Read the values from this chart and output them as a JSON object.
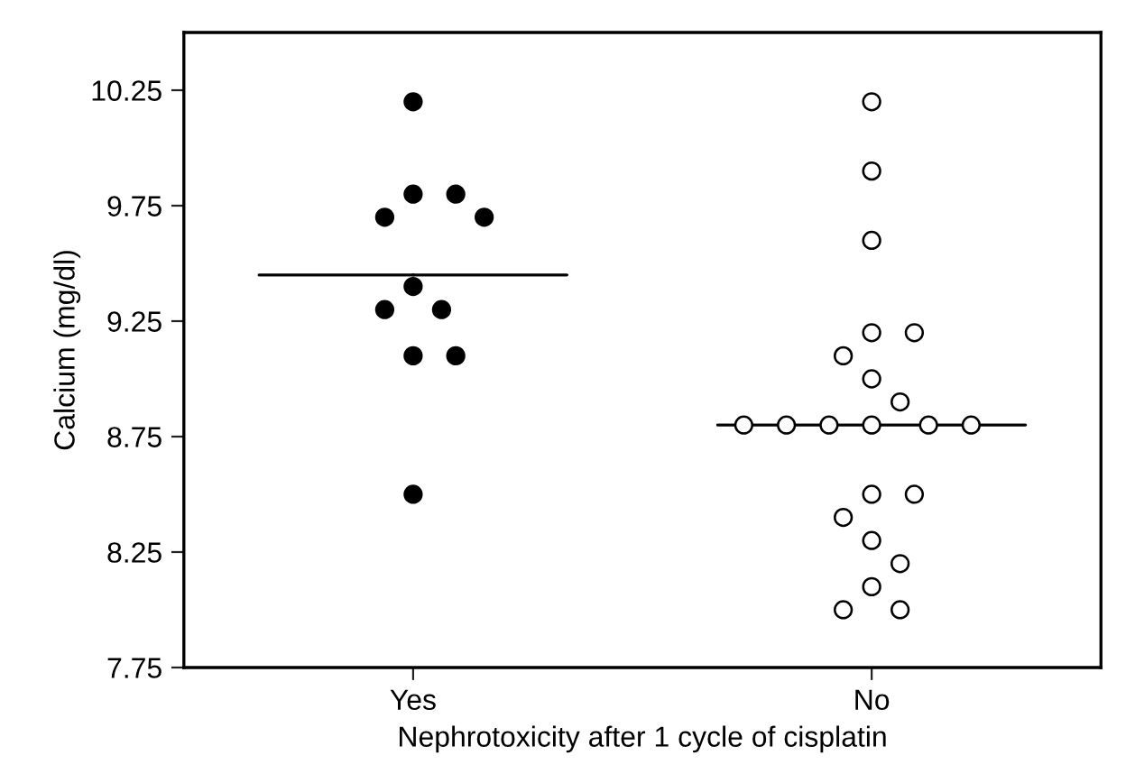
{
  "chart_data": {
    "type": "scatter",
    "xlabel": "Nephrotoxicity after 1 cycle of cisplatin",
    "ylabel": "Calcium (mg/dl)",
    "categories": [
      "Yes",
      "No"
    ],
    "ylim": [
      7.75,
      10.5
    ],
    "yticks": [
      7.75,
      8.25,
      8.75,
      9.25,
      9.75,
      10.25
    ],
    "series": [
      {
        "type": "scatter",
        "marker": "circle",
        "color": "#000000",
        "x": [
          "Yes",
          "Yes",
          "Yes",
          "Yes",
          "Yes",
          "Yes",
          "Yes",
          "Yes",
          "Yes",
          "Yes",
          "Yes"
        ],
        "values": [
          10.2,
          9.8,
          9.8,
          9.7,
          9.7,
          9.4,
          9.3,
          9.3,
          9.1,
          9.1,
          8.5
        ]
      },
      {
        "type": "scatter",
        "marker": "circle",
        "color": "#ffffff",
        "x": [
          "No",
          "No",
          "No",
          "No",
          "No",
          "No",
          "No",
          "No",
          "No",
          "No",
          "No",
          "No",
          "No",
          "No",
          "No",
          "No",
          "No",
          "No",
          "No",
          "No",
          "No",
          "No"
        ],
        "values": [
          10.2,
          9.9,
          9.6,
          9.2,
          9.2,
          9.1,
          9.0,
          8.9,
          8.8,
          8.8,
          8.8,
          8.8,
          8.8,
          8.8,
          8.5,
          8.5,
          8.4,
          8.3,
          8.2,
          8.1,
          8.0,
          8.0
        ]
      },
      {
        "type": "box",
        "color": "#000000",
        "boxes": [
          {
            "low": 9.45,
            "q1": 9.45,
            "median": 9.45,
            "q3": 9.45,
            "high": 9.45
          },
          {
            "low": 8.8,
            "q1": 8.8,
            "median": 8.8,
            "q3": 8.8,
            "high": 8.8
          }
        ]
      }
    ]
  }
}
